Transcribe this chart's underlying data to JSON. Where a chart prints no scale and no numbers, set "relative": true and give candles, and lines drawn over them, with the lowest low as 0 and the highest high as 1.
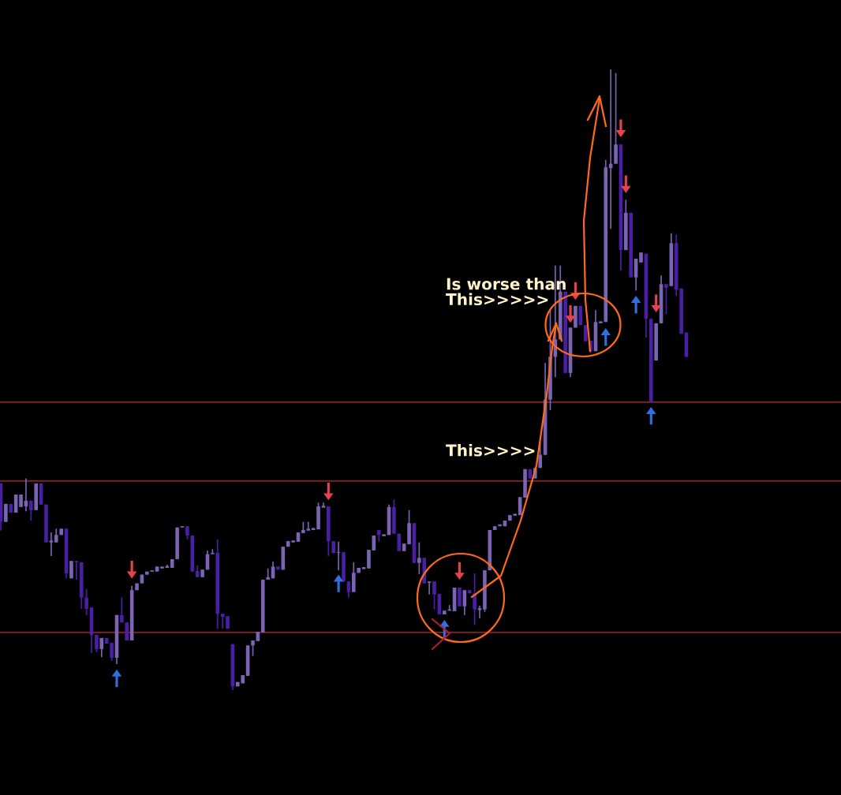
{
  "chart_data": {
    "type": "candlestick",
    "relative": true,
    "categories": [
      null,
      null,
      null,
      null,
      null,
      null,
      null,
      null,
      null,
      null,
      null,
      null,
      null,
      null,
      null,
      null,
      null,
      null,
      null,
      null,
      null,
      null,
      null,
      null,
      null,
      null,
      null,
      null,
      null,
      null,
      null,
      null,
      null,
      null,
      null,
      null,
      null,
      null,
      null,
      null,
      null,
      null,
      null,
      null,
      null,
      null,
      null,
      null,
      null,
      null,
      null,
      null,
      null,
      null,
      null,
      null,
      null,
      null,
      null,
      null,
      null,
      null,
      null,
      null,
      null,
      null,
      null,
      null,
      null,
      null,
      null,
      null,
      null,
      null,
      null,
      null,
      null,
      null,
      null,
      null,
      null,
      null,
      null,
      null,
      null,
      null,
      null,
      null,
      null,
      null,
      null,
      null,
      null,
      null,
      null,
      null,
      null,
      null,
      null,
      null,
      null,
      null,
      null,
      null,
      null,
      null,
      null,
      null,
      null,
      null,
      null,
      null,
      null,
      null,
      null,
      null,
      null,
      null,
      null,
      null,
      null,
      null,
      null,
      null,
      null,
      null,
      null,
      null,
      null,
      null,
      null,
      null,
      null,
      null,
      null,
      null,
      null
    ],
    "ohlc": [
      [
        0.333,
        0.333,
        0.257,
        0.271
      ],
      [
        0.271,
        0.3,
        0.271,
        0.3
      ],
      [
        0.3,
        0.3,
        0.286,
        0.286
      ],
      [
        0.286,
        0.315,
        0.286,
        0.315
      ],
      [
        0.295,
        0.315,
        0.295,
        0.315
      ],
      [
        0.296,
        0.341,
        0.288,
        0.305
      ],
      [
        0.305,
        0.305,
        0.273,
        0.29
      ],
      [
        0.29,
        0.333,
        0.29,
        0.333
      ],
      [
        0.333,
        0.333,
        0.299,
        0.299
      ],
      [
        0.299,
        0.299,
        0.238,
        0.238
      ],
      [
        0.238,
        0.254,
        0.216,
        0.241
      ],
      [
        0.238,
        0.26,
        0.238,
        0.25
      ],
      [
        0.25,
        0.26,
        0.25,
        0.26
      ],
      [
        0.26,
        0.26,
        0.18,
        0.188
      ],
      [
        0.18,
        0.208,
        0.18,
        0.208
      ],
      [
        0.208,
        0.208,
        0.178,
        0.206
      ],
      [
        0.206,
        0.206,
        0.131,
        0.149
      ],
      [
        0.149,
        0.163,
        0.121,
        0.131
      ],
      [
        0.133,
        0.133,
        0.06,
        0.089
      ],
      [
        0.089,
        0.089,
        0.061,
        0.066
      ],
      [
        0.066,
        0.084,
        0.053,
        0.084
      ],
      [
        0.084,
        0.084,
        0.075,
        0.075
      ],
      [
        0.076,
        0.076,
        0.047,
        0.052
      ],
      [
        0.052,
        0.121,
        0.042,
        0.121
      ],
      [
        0.121,
        0.149,
        0.109,
        0.109
      ],
      [
        0.109,
        0.109,
        0.08,
        0.08
      ],
      [
        0.08,
        0.168,
        0.08,
        0.161
      ],
      [
        0.161,
        0.172,
        0.161,
        0.172
      ],
      [
        0.172,
        0.186,
        0.172,
        0.186
      ],
      [
        0.186,
        0.191,
        0.186,
        0.191
      ],
      [
        0.191,
        0.193,
        0.191,
        0.193
      ],
      [
        0.191,
        0.199,
        0.191,
        0.199
      ],
      [
        0.196,
        0.199,
        0.196,
        0.199
      ],
      [
        0.197,
        0.202,
        0.197,
        0.2
      ],
      [
        0.197,
        0.211,
        0.197,
        0.211
      ],
      [
        0.211,
        0.262,
        0.211,
        0.262
      ],
      [
        0.262,
        0.264,
        0.262,
        0.264
      ],
      [
        0.264,
        0.264,
        0.243,
        0.249
      ],
      [
        0.249,
        0.249,
        0.191,
        0.191
      ],
      [
        0.192,
        0.201,
        0.182,
        0.182
      ],
      [
        0.182,
        0.194,
        0.182,
        0.194
      ],
      [
        0.194,
        0.225,
        0.194,
        0.219
      ],
      [
        0.219,
        0.227,
        0.219,
        0.221
      ],
      [
        0.221,
        0.243,
        0.099,
        0.123
      ],
      [
        0.123,
        0.123,
        0.099,
        0.118
      ],
      [
        0.119,
        0.119,
        0.099,
        0.099
      ],
      [
        0.074,
        0.074,
        0.0,
        0.006
      ],
      [
        0.006,
        0.013,
        0.006,
        0.013
      ],
      [
        0.011,
        0.024,
        0.011,
        0.024
      ],
      [
        0.023,
        0.072,
        0.023,
        0.072
      ],
      [
        0.072,
        0.08,
        0.055,
        0.08
      ],
      [
        0.079,
        0.094,
        0.079,
        0.094
      ],
      [
        0.093,
        0.178,
        0.093,
        0.178
      ],
      [
        0.178,
        0.196,
        0.178,
        0.182
      ],
      [
        0.18,
        0.207,
        0.18,
        0.199
      ],
      [
        0.199,
        0.199,
        0.194,
        0.194
      ],
      [
        0.194,
        0.231,
        0.194,
        0.231
      ],
      [
        0.231,
        0.24,
        0.231,
        0.24
      ],
      [
        0.238,
        0.241,
        0.238,
        0.241
      ],
      [
        0.239,
        0.254,
        0.239,
        0.254
      ],
      [
        0.253,
        0.271,
        0.253,
        0.258
      ],
      [
        0.257,
        0.271,
        0.257,
        0.26
      ],
      [
        0.258,
        0.261,
        0.258,
        0.261
      ],
      [
        0.259,
        0.302,
        0.259,
        0.296
      ],
      [
        0.294,
        0.302,
        0.294,
        0.297
      ],
      [
        0.296,
        0.296,
        0.216,
        0.24
      ],
      [
        0.24,
        0.24,
        0.221,
        0.221
      ],
      [
        0.221,
        0.239,
        0.193,
        0.222
      ],
      [
        0.222,
        0.222,
        0.175,
        0.175
      ],
      [
        0.175,
        0.175,
        0.149,
        0.158
      ],
      [
        0.158,
        0.206,
        0.158,
        0.189
      ],
      [
        0.189,
        0.197,
        0.189,
        0.197
      ],
      [
        0.195,
        0.198,
        0.195,
        0.198
      ],
      [
        0.196,
        0.226,
        0.196,
        0.226
      ],
      [
        0.225,
        0.249,
        0.225,
        0.249
      ],
      [
        0.258,
        0.258,
        0.239,
        0.25
      ],
      [
        0.248,
        0.251,
        0.248,
        0.251
      ],
      [
        0.25,
        0.299,
        0.25,
        0.295
      ],
      [
        0.295,
        0.307,
        0.252,
        0.252
      ],
      [
        0.252,
        0.252,
        0.224,
        0.224
      ],
      [
        0.224,
        0.236,
        0.224,
        0.236
      ],
      [
        0.235,
        0.29,
        0.235,
        0.269
      ],
      [
        0.269,
        0.269,
        0.205,
        0.205
      ],
      [
        0.205,
        0.238,
        0.187,
        0.213
      ],
      [
        0.213,
        0.213,
        0.172,
        0.172
      ],
      [
        0.173,
        0.175,
        0.154,
        0.175
      ],
      [
        0.175,
        0.175,
        0.13,
        0.154
      ],
      [
        0.155,
        0.155,
        0.122,
        0.122
      ],
      [
        0.122,
        0.128,
        0.122,
        0.128
      ],
      [
        0.128,
        0.137,
        0.128,
        0.13
      ],
      [
        0.127,
        0.165,
        0.127,
        0.165
      ],
      [
        0.165,
        0.165,
        0.135,
        0.135
      ],
      [
        0.135,
        0.161,
        0.121,
        0.161
      ],
      [
        0.161,
        0.161,
        0.156,
        0.156
      ],
      [
        0.156,
        0.188,
        0.105,
        0.13
      ],
      [
        0.129,
        0.136,
        0.116,
        0.132
      ],
      [
        0.13,
        0.193,
        0.126,
        0.193
      ],
      [
        0.193,
        0.258,
        0.193,
        0.258
      ],
      [
        0.258,
        0.264,
        0.258,
        0.264
      ],
      [
        0.264,
        0.267,
        0.264,
        0.267
      ],
      [
        0.264,
        0.273,
        0.264,
        0.273
      ],
      [
        0.273,
        0.282,
        0.273,
        0.282
      ],
      [
        0.281,
        0.284,
        0.281,
        0.284
      ],
      [
        0.282,
        0.311,
        0.282,
        0.311
      ],
      [
        0.31,
        0.356,
        0.31,
        0.356
      ],
      [
        0.356,
        0.356,
        0.341,
        0.341
      ],
      [
        0.341,
        0.358,
        0.341,
        0.358
      ],
      [
        0.358,
        0.4,
        0.358,
        0.379
      ],
      [
        0.379,
        0.527,
        0.379,
        0.468
      ],
      [
        0.468,
        0.614,
        0.451,
        0.537
      ],
      [
        0.537,
        0.684,
        0.504,
        0.565
      ],
      [
        0.565,
        0.684,
        0.565,
        0.642
      ],
      [
        0.642,
        0.642,
        0.511,
        0.511
      ],
      [
        0.511,
        0.584,
        0.504,
        0.584
      ],
      [
        0.584,
        0.619,
        0.584,
        0.619
      ],
      [
        0.619,
        0.619,
        0.588,
        0.588
      ],
      [
        0.588,
        0.588,
        0.562,
        0.562
      ],
      [
        0.563,
        0.563,
        0.543,
        0.546
      ],
      [
        0.546,
        0.612,
        0.546,
        0.593
      ],
      [
        0.591,
        0.594,
        0.591,
        0.594
      ],
      [
        0.593,
        0.854,
        0.593,
        0.842
      ],
      [
        0.841,
        1.0,
        0.743,
        0.848
      ],
      [
        0.848,
        0.994,
        0.848,
        0.879
      ],
      [
        0.879,
        0.879,
        0.676,
        0.709
      ],
      [
        0.709,
        0.79,
        0.709,
        0.769
      ],
      [
        0.769,
        0.769,
        0.665,
        0.665
      ],
      [
        0.665,
        0.695,
        0.644,
        0.695
      ],
      [
        0.689,
        0.705,
        0.689,
        0.705
      ],
      [
        0.703,
        0.703,
        0.568,
        0.598
      ],
      [
        0.598,
        0.598,
        0.464,
        0.464
      ],
      [
        0.531,
        0.591,
        0.531,
        0.591
      ],
      [
        0.591,
        0.668,
        0.591,
        0.654
      ],
      [
        0.654,
        0.654,
        0.606,
        0.648
      ],
      [
        0.651,
        0.736,
        0.651,
        0.72
      ],
      [
        0.72,
        0.734,
        0.635,
        0.645
      ],
      [
        0.647,
        0.647,
        0.574,
        0.574
      ],
      [
        0.576,
        0.576,
        0.537,
        0.537
      ]
    ],
    "colors": [
      "#4a1fa6",
      "#7b64b4",
      "#4a1fa6",
      "#7b64b4",
      "#7b64b4",
      "#7b64b4",
      "#4a1fa6",
      "#7b64b4",
      "#4a1fa6",
      "#4a1fa6",
      "#7b64b4",
      "#7b64b4",
      "#7b64b4",
      "#4a1fa6",
      "#7b64b4",
      "#4a1fa6",
      "#4a1fa6",
      "#4a1fa6",
      "#4a1fa6",
      "#4a1fa6",
      "#7b64b4",
      "#4a1fa6",
      "#4a1fa6",
      "#7b64b4",
      "#4a1fa6",
      "#4a1fa6",
      "#7b64b4",
      "#7b64b4",
      "#7b64b4",
      "#7b64b4",
      "#7b64b4",
      "#7b64b4",
      "#7b64b4",
      "#7b64b4",
      "#7b64b4",
      "#7b64b4",
      "#7b64b4",
      "#4a1fa6",
      "#4a1fa6",
      "#4a1fa6",
      "#7b64b4",
      "#7b64b4",
      "#7b64b4",
      "#4a1fa6",
      "#4a1fa6",
      "#4a1fa6",
      "#4a1fa6",
      "#7b64b4",
      "#7b64b4",
      "#7b64b4",
      "#7b64b4",
      "#7b64b4",
      "#7b64b4",
      "#7b64b4",
      "#7b64b4",
      "#4a1fa6",
      "#7b64b4",
      "#7b64b4",
      "#7b64b4",
      "#7b64b4",
      "#7b64b4",
      "#7b64b4",
      "#7b64b4",
      "#7b64b4",
      "#7b64b4",
      "#4a1fa6",
      "#4a1fa6",
      "#7b64b4",
      "#4a1fa6",
      "#4a1fa6",
      "#7b64b4",
      "#7b64b4",
      "#7b64b4",
      "#7b64b4",
      "#7b64b4",
      "#4a1fa6",
      "#7b64b4",
      "#7b64b4",
      "#4a1fa6",
      "#4a1fa6",
      "#7b64b4",
      "#7b64b4",
      "#4a1fa6",
      "#7b64b4",
      "#4a1fa6",
      "#7b64b4",
      "#4a1fa6",
      "#4a1fa6",
      "#7b64b4",
      "#7b64b4",
      "#7b64b4",
      "#4a1fa6",
      "#7b64b4",
      "#4a1fa6",
      "#4a1fa6",
      "#7b64b4",
      "#7b64b4",
      "#7b64b4",
      "#7b64b4",
      "#7b64b4",
      "#7b64b4",
      "#7b64b4",
      "#7b64b4",
      "#7b64b4",
      "#7b64b4",
      "#4a1fa6",
      "#7b64b4",
      "#7b64b4",
      "#7b64b4",
      "#7b64b4",
      "#7b64b4",
      "#7b64b4",
      "#4a1fa6",
      "#7b64b4",
      "#7b64b4",
      "#4a1fa6",
      "#4a1fa6",
      "#4a1fa6",
      "#7b64b4",
      "#7b64b4",
      "#7b64b4",
      "#7b64b4",
      "#7b64b4",
      "#4a1fa6",
      "#7b64b4",
      "#4a1fa6",
      "#7b64b4",
      "#7b64b4",
      "#4a1fa6",
      "#4a1fa6",
      "#7b64b4",
      "#7b64b4",
      "#4a1fa6",
      "#7b64b4",
      "#4a1fa6",
      "#4a1fa6",
      "#4a1fa6"
    ],
    "series": [
      {
        "type": "scatter",
        "color": "#e8414e",
        "values": [
          null,
          null,
          null,
          null,
          null,
          null,
          null,
          null,
          null,
          null,
          null,
          null,
          null,
          null,
          null,
          null,
          null,
          null,
          null,
          null,
          null,
          null,
          null,
          null,
          null,
          null,
          0.194,
          null,
          null,
          null,
          null,
          null,
          null,
          null,
          null,
          null,
          null,
          null,
          null,
          null,
          null,
          null,
          null,
          null,
          null,
          null,
          null,
          null,
          null,
          null,
          null,
          null,
          null,
          null,
          null,
          null,
          null,
          null,
          null,
          null,
          null,
          null,
          null,
          null,
          null,
          0.32,
          null,
          null,
          null,
          null,
          null,
          null,
          null,
          null,
          null,
          null,
          null,
          null,
          null,
          null,
          null,
          null,
          null,
          null,
          null,
          null,
          null,
          null,
          null,
          null,
          null,
          0.192,
          null,
          null,
          null,
          null,
          null,
          null,
          null,
          null,
          null,
          null,
          null,
          null,
          null,
          null,
          null,
          null,
          null,
          null,
          null,
          null,
          null,
          0.606,
          0.643,
          null,
          null,
          null,
          null,
          null,
          null,
          null,
          null,
          0.905,
          0.815,
          null,
          null,
          null,
          null,
          null,
          0.623,
          null,
          null,
          null,
          null,
          null,
          null
        ]
      },
      {
        "type": "scatter",
        "color": "#2f6fe0",
        "values": [
          null,
          null,
          null,
          null,
          null,
          null,
          null,
          null,
          null,
          null,
          null,
          null,
          null,
          null,
          null,
          null,
          null,
          null,
          null,
          null,
          null,
          null,
          null,
          0.019,
          null,
          null,
          null,
          null,
          null,
          null,
          null,
          null,
          null,
          null,
          null,
          null,
          null,
          null,
          null,
          null,
          null,
          null,
          null,
          null,
          null,
          null,
          null,
          null,
          null,
          null,
          null,
          null,
          null,
          null,
          null,
          null,
          null,
          null,
          null,
          null,
          null,
          null,
          null,
          null,
          null,
          null,
          null,
          0.172,
          null,
          null,
          null,
          null,
          null,
          null,
          null,
          null,
          null,
          null,
          null,
          null,
          null,
          null,
          null,
          null,
          null,
          null,
          null,
          null,
          0.099,
          null,
          null,
          null,
          null,
          null,
          null,
          null,
          null,
          null,
          null,
          null,
          null,
          null,
          null,
          null,
          null,
          null,
          null,
          null,
          null,
          null,
          null,
          null,
          null,
          null,
          null,
          null,
          null,
          null,
          null,
          null,
          0.569,
          null,
          null,
          null,
          null,
          null,
          0.621,
          null,
          null,
          0.442,
          null,
          null,
          null,
          null,
          null,
          null,
          null
        ]
      }
    ],
    "ref_lines": [
      {
        "axis": "y",
        "value": 0.337,
        "color": "#8c1c2c"
      },
      {
        "axis": "y",
        "value": 0.464,
        "color": "#8c1c2c"
      },
      {
        "axis": "y",
        "value": 0.093,
        "color": "#8c1c2c"
      }
    ],
    "annotations": [
      "Is worse than\nThis>>>>>",
      "This>>>>"
    ]
  }
}
